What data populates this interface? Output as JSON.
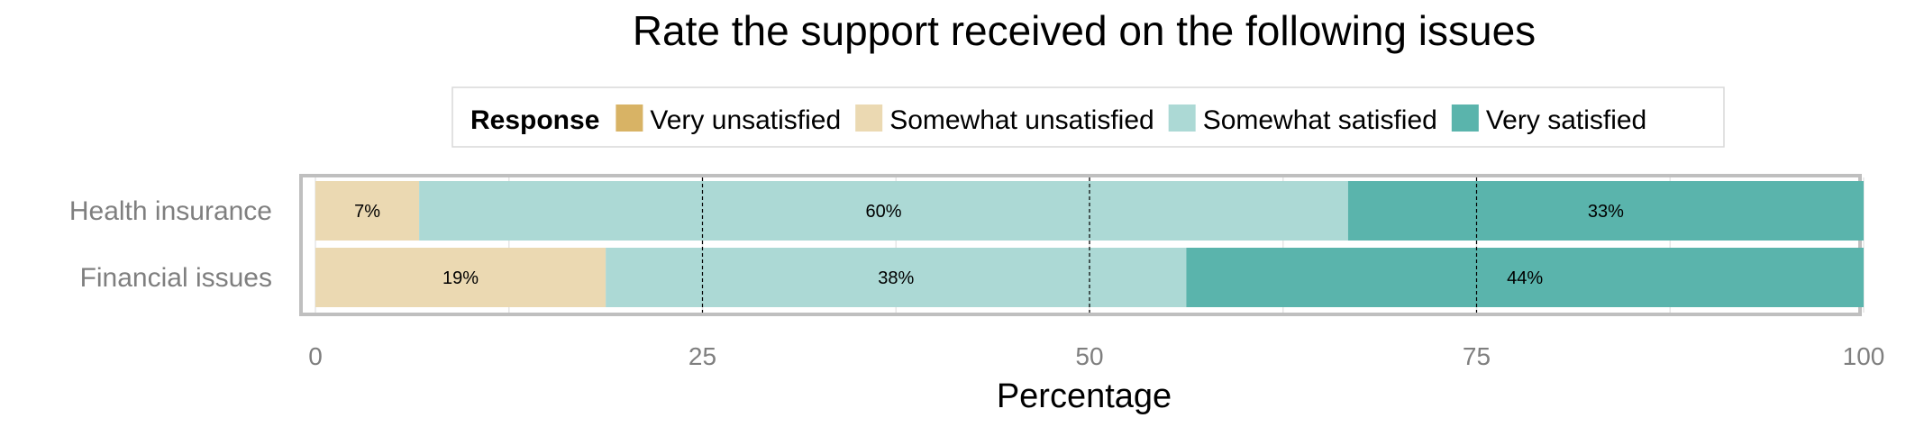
{
  "chart_data": {
    "type": "bar",
    "orientation": "horizontal",
    "stacked": true,
    "title": "Rate the support received on the following issues",
    "xlabel": "Percentage",
    "ylabel": "",
    "xlim": [
      0,
      100
    ],
    "xticks": [
      0,
      25,
      50,
      75,
      100
    ],
    "grid": true,
    "legend_position": "top",
    "legend_title": "Response",
    "legend": [
      {
        "name": "Very unsatisfied",
        "color": "#d8b365"
      },
      {
        "name": "Somewhat unsatisfied",
        "color": "#ebd9b2"
      },
      {
        "name": "Somewhat satisfied",
        "color": "#acd9d5"
      },
      {
        "name": "Very satisfied",
        "color": "#5ab4ac"
      }
    ],
    "categories": [
      "Health insurance",
      "Financial issues"
    ],
    "series": [
      {
        "name": "Very unsatisfied",
        "color": "#d8b365",
        "values": [
          0,
          0
        ],
        "labels": [
          "",
          ""
        ]
      },
      {
        "name": "Somewhat unsatisfied",
        "color": "#ebd9b2",
        "values": [
          6.7,
          18.75
        ],
        "labels": [
          "7%",
          "19%"
        ]
      },
      {
        "name": "Somewhat satisfied",
        "color": "#acd9d5",
        "values": [
          60,
          37.5
        ],
        "labels": [
          "60%",
          "38%"
        ]
      },
      {
        "name": "Very satisfied",
        "color": "#5ab4ac",
        "values": [
          33.3,
          43.75
        ],
        "labels": [
          "33%",
          "44%"
        ]
      }
    ]
  }
}
